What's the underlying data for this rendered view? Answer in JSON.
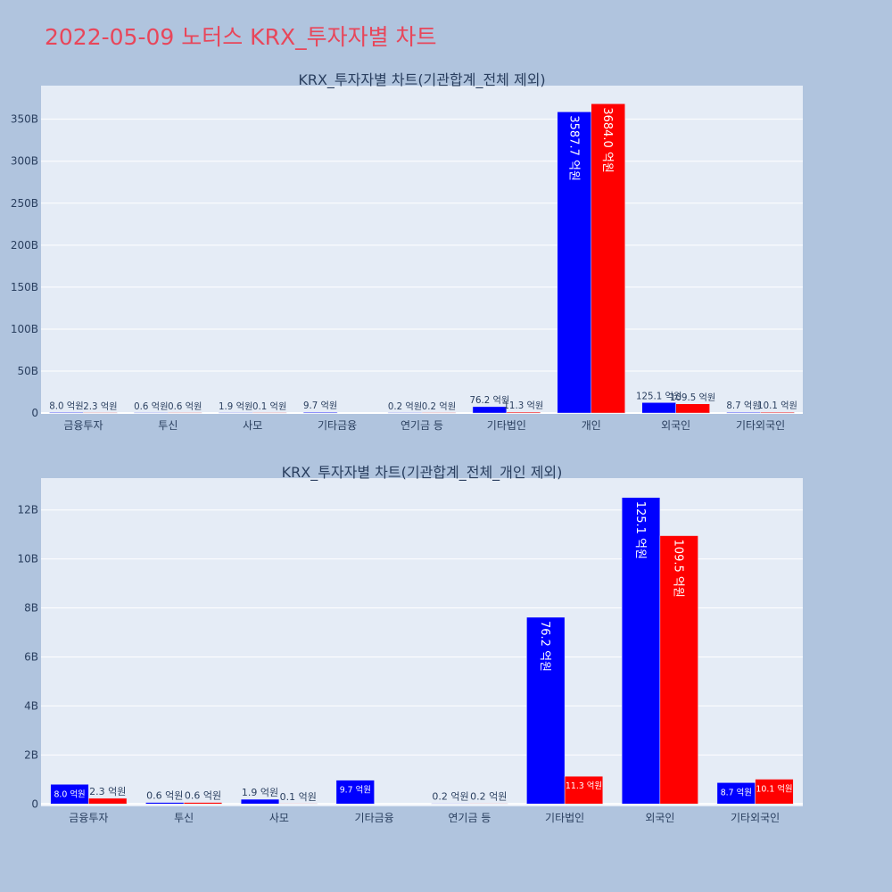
{
  "page": {
    "title": "2022-05-09 노터스 KRX_투자자별 차트",
    "background": "#b0c4de",
    "title_color": "#e8465a"
  },
  "chart_data": [
    {
      "type": "bar",
      "title": "KRX_투자자별 차트(기관합계_전체 제외)",
      "categories": [
        "금융투자",
        "투신",
        "사모",
        "기타금융",
        "연기금 등",
        "기타법인",
        "개인",
        "외국인",
        "기타외국인"
      ],
      "series": [
        {
          "color": "#0000ff",
          "values": [
            0.8,
            0.06,
            0.19,
            0.97,
            0.02,
            7.62,
            358.77,
            12.51,
            0.87
          ],
          "labels": [
            "8.0 억원",
            "0.6 억원",
            "1.9 억원",
            "9.7 억원",
            "0.2 억원",
            "76.2 억원",
            "3587.7 억원",
            "125.1 억원",
            "8.7 억원"
          ]
        },
        {
          "color": "#ff0000",
          "values": [
            0.23,
            0.06,
            0.01,
            null,
            0.02,
            1.13,
            368.4,
            10.95,
            1.01
          ],
          "labels": [
            "2.3 억원",
            "0.6 억원",
            "0.1 억원",
            "",
            "0.2 억원",
            "11.3 억원",
            "3684.0 억원",
            "109.5 억원",
            "10.1 억원"
          ]
        }
      ],
      "ylim": [
        -1,
        390
      ],
      "yticks": [
        0,
        50,
        100,
        150,
        200,
        250,
        300,
        350
      ],
      "yticklabels": [
        "0",
        "50B",
        "100B",
        "150B",
        "200B",
        "250B",
        "300B",
        "350B"
      ],
      "grid": true,
      "plot_bg": "#e5ecf6"
    },
    {
      "type": "bar",
      "title": "KRX_투자자별 차트(기관합계_전체_개인 제외)",
      "categories": [
        "금융투자",
        "투신",
        "사모",
        "기타금융",
        "연기금 등",
        "기타법인",
        "외국인",
        "기타외국인"
      ],
      "series": [
        {
          "color": "#0000ff",
          "values": [
            0.8,
            0.06,
            0.19,
            0.97,
            0.02,
            7.62,
            12.51,
            0.87
          ],
          "labels": [
            "8.0 억원",
            "0.6 억원",
            "1.9 억원",
            "9.7 억원",
            "0.2 억원",
            "76.2 억원",
            "125.1 억원",
            "8.7 억원"
          ]
        },
        {
          "color": "#ff0000",
          "values": [
            0.23,
            0.06,
            0.01,
            null,
            0.02,
            1.13,
            10.95,
            1.01
          ],
          "labels": [
            "2.3 억원",
            "0.6 억원",
            "0.1 억원",
            "",
            "0.2 억원",
            "11.3 억원",
            "109.5 억원",
            "10.1 억원"
          ]
        }
      ],
      "ylim": [
        -0.1,
        13.3
      ],
      "yticks": [
        0,
        2,
        4,
        6,
        8,
        10,
        12
      ],
      "yticklabels": [
        "0",
        "2B",
        "4B",
        "6B",
        "8B",
        "10B",
        "12B"
      ],
      "grid": true,
      "plot_bg": "#e5ecf6"
    }
  ]
}
